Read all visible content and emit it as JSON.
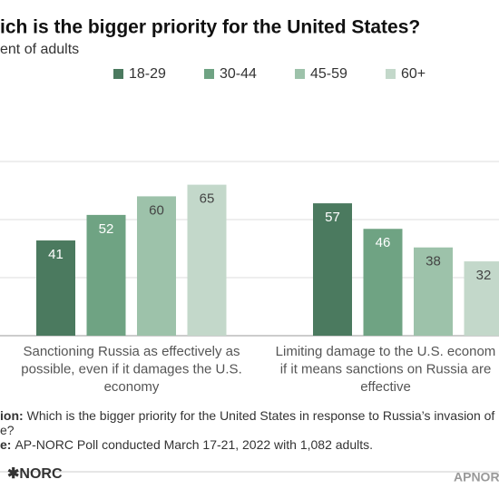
{
  "chart_data": {
    "type": "bar",
    "title": "ich is the bigger priority for the United States?",
    "subtitle": "ent of adults",
    "categories": [
      [
        "Sanctioning Russia as effectively as",
        "possible, even if it damages the U.S.",
        "economy"
      ],
      [
        "Limiting damage to the U.S. econom",
        "if it means sanctions on Russia are",
        "effective"
      ]
    ],
    "series": [
      {
        "name": "18-29",
        "color": "#4b7a5f",
        "values": [
          41,
          57
        ]
      },
      {
        "name": "30-44",
        "color": "#6fa383",
        "values": [
          52,
          46
        ]
      },
      {
        "name": "45-59",
        "color": "#9dc2aa",
        "values": [
          60,
          38
        ]
      },
      {
        "name": "60+",
        "color": "#c3d8ca",
        "values": [
          65,
          32
        ]
      }
    ],
    "ylim": [
      0,
      75
    ],
    "yticks": [
      0,
      25,
      50,
      75
    ],
    "grid": true,
    "notes": [
      {
        "label": "ion:",
        "text": "Which is the bigger priority for the United States in response to Russia’s invasion of"
      },
      {
        "label": "",
        "text": "e?"
      },
      {
        "label": "e:",
        "text": "AP-NORC Poll conducted March 17-21, 2022 with 1,082 adults."
      }
    ],
    "logo_left": "✱NORC",
    "logo_right": "APNOR"
  }
}
